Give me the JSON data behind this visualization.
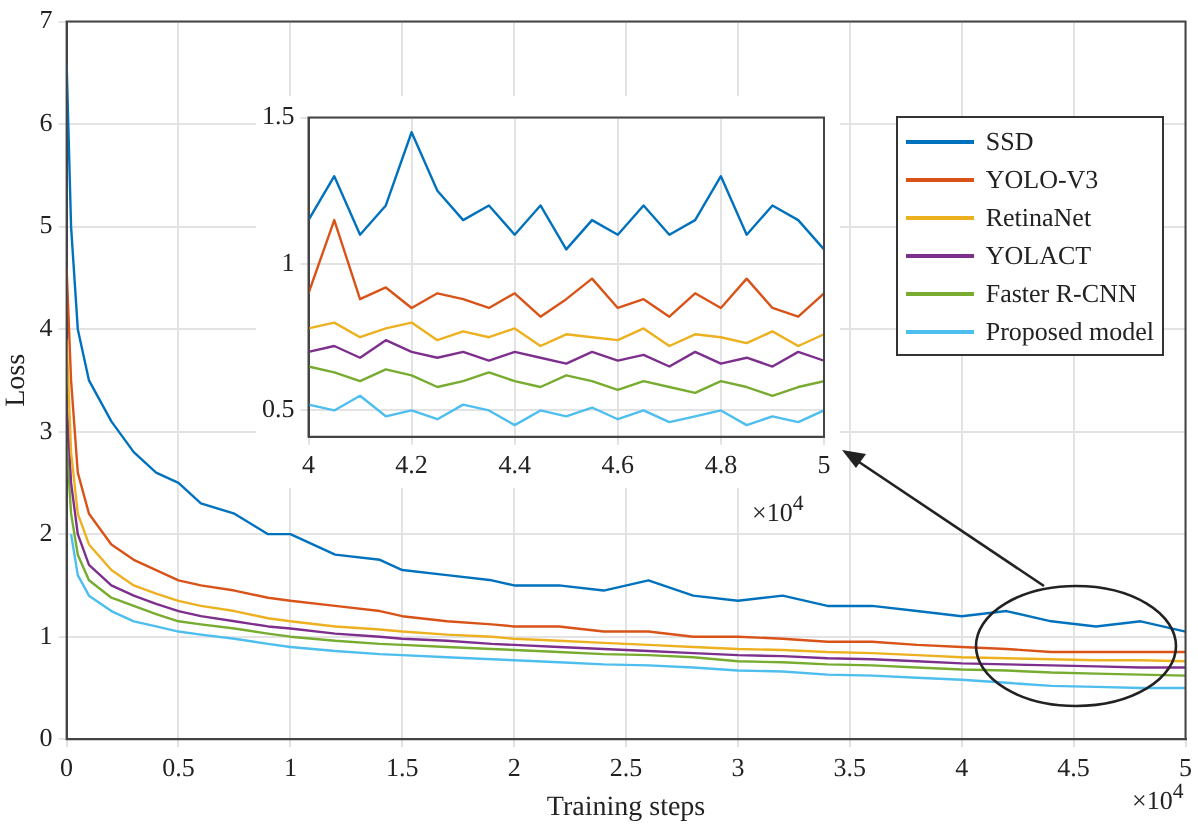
{
  "chart_data": [
    {
      "type": "line",
      "xlabel": "Training steps",
      "ylabel": "Loss",
      "xlim": [
        0,
        5
      ],
      "xticks": [
        0,
        0.5,
        1,
        1.5,
        2,
        2.5,
        3,
        3.5,
        4,
        4.5,
        5
      ],
      "ylim": [
        0,
        7
      ],
      "yticks": [
        0,
        1,
        2,
        3,
        4,
        5,
        6,
        7
      ],
      "grid": true,
      "legend": "top right",
      "marker": "none",
      "annotations": [
        "×10$^{4}$"
      ],
      "x": [
        0,
        0.02,
        0.05,
        0.1,
        0.2,
        0.3,
        0.4,
        0.5,
        0.6,
        0.75,
        0.9,
        1,
        1.2,
        1.4,
        1.5,
        1.7,
        1.9,
        2,
        2.2,
        2.4,
        2.6,
        2.8,
        3,
        3.2,
        3.4,
        3.6,
        3.8,
        4,
        4.2,
        4.4,
        4.6,
        4.8,
        5
      ],
      "series": [
        {
          "name": "SSD",
          "color": "#0072bd",
          "values": [
            6.6,
            5,
            4,
            3.5,
            3.1,
            2.8,
            2.6,
            2.5,
            2.3,
            2.2,
            2,
            2,
            1.8,
            1.75,
            1.65,
            1.6,
            1.55,
            1.5,
            1.5,
            1.45,
            1.55,
            1.4,
            1.35,
            1.4,
            1.3,
            1.3,
            1.25,
            1.2,
            1.25,
            1.15,
            1.1,
            1.15,
            1.05
          ]
        },
        {
          "name": "YOLO-V3",
          "color": "#d95319",
          "values": [
            4.6,
            3.5,
            2.6,
            2.2,
            1.9,
            1.75,
            1.65,
            1.55,
            1.5,
            1.45,
            1.38,
            1.35,
            1.3,
            1.25,
            1.2,
            1.15,
            1.12,
            1.1,
            1.1,
            1.05,
            1.05,
            1,
            1,
            0.98,
            0.95,
            0.95,
            0.92,
            0.9,
            0.88,
            0.85,
            0.85,
            0.85,
            0.85
          ]
        },
        {
          "name": "RetinaNet",
          "color": "#edb120",
          "values": [
            3.9,
            2.8,
            2.2,
            1.9,
            1.65,
            1.5,
            1.42,
            1.35,
            1.3,
            1.25,
            1.18,
            1.15,
            1.1,
            1.07,
            1.05,
            1.02,
            1,
            0.98,
            0.96,
            0.94,
            0.92,
            0.9,
            0.88,
            0.87,
            0.85,
            0.84,
            0.82,
            0.8,
            0.79,
            0.78,
            0.77,
            0.77,
            0.76
          ]
        },
        {
          "name": "YOLACT",
          "color": "#7e2f8e",
          "values": [
            3.3,
            2.5,
            2,
            1.7,
            1.5,
            1.4,
            1.32,
            1.25,
            1.2,
            1.15,
            1.1,
            1.08,
            1.03,
            1,
            0.98,
            0.96,
            0.93,
            0.92,
            0.9,
            0.88,
            0.86,
            0.84,
            0.82,
            0.81,
            0.79,
            0.78,
            0.76,
            0.74,
            0.73,
            0.72,
            0.71,
            0.7,
            0.7
          ]
        },
        {
          "name": "Faster R-CNN",
          "color": "#77ac30",
          "values": [
            2.9,
            2.2,
            1.8,
            1.55,
            1.38,
            1.3,
            1.22,
            1.15,
            1.12,
            1.08,
            1.03,
            1,
            0.96,
            0.93,
            0.92,
            0.9,
            0.88,
            0.87,
            0.85,
            0.83,
            0.82,
            0.8,
            0.76,
            0.75,
            0.73,
            0.72,
            0.7,
            0.68,
            0.67,
            0.65,
            0.64,
            0.63,
            0.62
          ]
        },
        {
          "name": "Proposed model",
          "color": "#4dbeee",
          "values": [
            null,
            2,
            1.6,
            1.4,
            1.25,
            1.15,
            1.1,
            1.05,
            1.02,
            0.98,
            0.93,
            0.9,
            0.86,
            0.83,
            0.82,
            0.8,
            0.78,
            0.77,
            0.75,
            0.73,
            0.72,
            0.7,
            0.67,
            0.66,
            0.63,
            0.62,
            0.6,
            0.58,
            0.55,
            0.52,
            0.51,
            0.5,
            0.5
          ]
        }
      ]
    },
    {
      "type": "line",
      "xlim": [
        4,
        5
      ],
      "xticks": [
        4,
        4.2,
        4.4,
        4.6,
        4.8,
        5
      ],
      "ylim": [
        0.41,
        1.5
      ],
      "yticks": [
        0.5,
        1,
        1.5
      ],
      "grid": true,
      "marker": "none",
      "annotations": [
        "×10$^{4}$"
      ],
      "x": [
        4,
        4.05,
        4.1,
        4.15,
        4.2,
        4.25,
        4.3,
        4.35,
        4.4,
        4.45,
        4.5,
        4.55,
        4.6,
        4.65,
        4.7,
        4.75,
        4.8,
        4.85,
        4.9,
        4.95,
        5
      ],
      "series": [
        {
          "color": "#0072bd",
          "values": [
            1.15,
            1.3,
            1.1,
            1.2,
            1.45,
            1.25,
            1.15,
            1.2,
            1.1,
            1.2,
            1.05,
            1.15,
            1.1,
            1.2,
            1.1,
            1.15,
            1.3,
            1.1,
            1.2,
            1.15,
            1.05
          ]
        },
        {
          "color": "#d95319",
          "values": [
            0.9,
            1.15,
            0.88,
            0.92,
            0.85,
            0.9,
            0.88,
            0.85,
            0.9,
            0.82,
            0.88,
            0.95,
            0.85,
            0.88,
            0.82,
            0.9,
            0.85,
            0.95,
            0.85,
            0.82,
            0.9
          ]
        },
        {
          "color": "#edb120",
          "values": [
            0.78,
            0.8,
            0.75,
            0.78,
            0.8,
            0.74,
            0.77,
            0.75,
            0.78,
            0.72,
            0.76,
            0.75,
            0.74,
            0.78,
            0.72,
            0.76,
            0.75,
            0.73,
            0.77,
            0.72,
            0.76
          ]
        },
        {
          "color": "#7e2f8e",
          "values": [
            0.7,
            0.72,
            0.68,
            0.74,
            0.7,
            0.68,
            0.7,
            0.67,
            0.7,
            0.68,
            0.66,
            0.7,
            0.67,
            0.69,
            0.65,
            0.7,
            0.66,
            0.68,
            0.65,
            0.7,
            0.67
          ]
        },
        {
          "color": "#77ac30",
          "values": [
            0.65,
            0.63,
            0.6,
            0.64,
            0.62,
            0.58,
            0.6,
            0.63,
            0.6,
            0.58,
            0.62,
            0.6,
            0.57,
            0.6,
            0.58,
            0.56,
            0.6,
            0.58,
            0.55,
            0.58,
            0.6
          ]
        },
        {
          "color": "#4dbeee",
          "values": [
            0.52,
            0.5,
            0.55,
            0.48,
            0.5,
            0.47,
            0.52,
            0.5,
            0.45,
            0.5,
            0.48,
            0.51,
            0.47,
            0.5,
            0.46,
            0.48,
            0.5,
            0.45,
            0.48,
            0.46,
            0.5
          ]
        }
      ]
    }
  ]
}
